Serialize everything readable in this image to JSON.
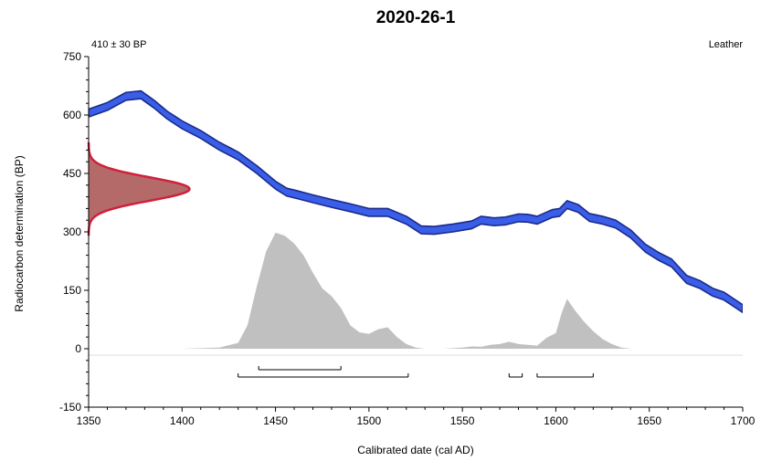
{
  "chart_data": {
    "type": "line",
    "title": "2020-26-1",
    "sample_age": "410 ± 30 BP",
    "material": "Leather",
    "xlabel": "Calibrated date (cal AD)",
    "ylabel": "Radiocarbon determination (BP)",
    "xlim": [
      1350,
      1700
    ],
    "ylim": [
      -150,
      750
    ],
    "x_ticks": [
      1350,
      1400,
      1450,
      1500,
      1550,
      1600,
      1650,
      1700
    ],
    "y_ticks": [
      -150,
      0,
      150,
      300,
      450,
      600,
      750
    ],
    "colors": {
      "calibration_curve": "#3a5ee8",
      "calibration_curve_edge": "#1a2a8a",
      "radiocarbon_distribution_fill": "#b56a6a",
      "radiocarbon_distribution_edge": "#d0203a",
      "calibrated_distribution": "#c0c0c0"
    },
    "calibration_curve": {
      "x": [
        1350,
        1360,
        1370,
        1378,
        1385,
        1392,
        1400,
        1410,
        1420,
        1430,
        1440,
        1450,
        1456,
        1462,
        1470,
        1480,
        1490,
        1500,
        1510,
        1520,
        1528,
        1535,
        1545,
        1555,
        1560,
        1567,
        1573,
        1580,
        1585,
        1590,
        1598,
        1602,
        1606,
        1612,
        1618,
        1625,
        1632,
        1640,
        1648,
        1655,
        1662,
        1670,
        1677,
        1684,
        1690,
        1700
      ],
      "y": [
        605,
        622,
        648,
        652,
        628,
        600,
        575,
        550,
        520,
        495,
        460,
        420,
        402,
        395,
        385,
        373,
        362,
        350,
        350,
        330,
        305,
        304,
        310,
        318,
        330,
        326,
        328,
        336,
        335,
        330,
        347,
        350,
        370,
        360,
        337,
        330,
        320,
        295,
        258,
        237,
        220,
        178,
        165,
        145,
        135,
        103
      ],
      "band_halfwidth": 10
    },
    "radiocarbon_distribution": {
      "mean_bp": 410,
      "sigma_bp": 30,
      "max_x_extent": 1404
    },
    "calibrated_distribution": {
      "x": [
        1400,
        1420,
        1430,
        1435,
        1440,
        1445,
        1450,
        1455,
        1460,
        1465,
        1470,
        1475,
        1480,
        1485,
        1490,
        1495,
        1500,
        1505,
        1510,
        1515,
        1520,
        1525,
        1530,
        1540,
        1550,
        1555,
        1560,
        1565,
        1570,
        1575,
        1580,
        1585,
        1590,
        1595,
        1600,
        1603,
        1606,
        1610,
        1615,
        1620,
        1625,
        1630,
        1635,
        1640
      ],
      "y": [
        0,
        3,
        15,
        60,
        160,
        250,
        298,
        290,
        270,
        240,
        195,
        155,
        135,
        105,
        60,
        42,
        38,
        50,
        55,
        30,
        12,
        3,
        0,
        0,
        3,
        6,
        5,
        10,
        12,
        18,
        12,
        10,
        8,
        28,
        40,
        90,
        128,
        100,
        70,
        45,
        25,
        12,
        3,
        0
      ]
    },
    "ranges_95": [
      [
        1430,
        1521
      ],
      [
        1575,
        1582
      ],
      [
        1590,
        1620
      ]
    ],
    "ranges_68": [
      [
        1441,
        1485
      ]
    ]
  }
}
